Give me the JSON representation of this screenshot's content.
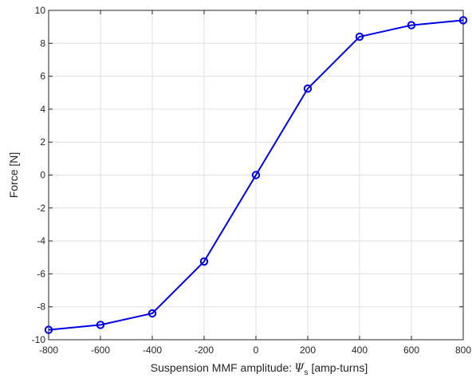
{
  "chart_data": {
    "type": "line",
    "xlabel_main": "Suspension MMF amplitude:",
    "xlabel_symbol": "Ψ",
    "xlabel_subscript": "s",
    "xlabel_unit": "[amp-turns]",
    "ylabel": "Force [N]",
    "xlim": [
      -800,
      800
    ],
    "ylim": [
      -10,
      10
    ],
    "xticks": [
      -800,
      -600,
      -400,
      -200,
      0,
      200,
      400,
      600,
      800
    ],
    "yticks": [
      -10,
      -8,
      -6,
      -4,
      -2,
      0,
      2,
      4,
      6,
      8,
      10
    ],
    "grid": true,
    "series": [
      {
        "color": "#0000e6",
        "marker": "circle",
        "x": [
          -800,
          -600,
          -400,
          -200,
          0,
          200,
          400,
          600,
          800
        ],
        "y": [
          -9.4,
          -9.1,
          -8.4,
          -5.25,
          0.0,
          5.25,
          8.4,
          9.1,
          9.4
        ]
      }
    ]
  }
}
